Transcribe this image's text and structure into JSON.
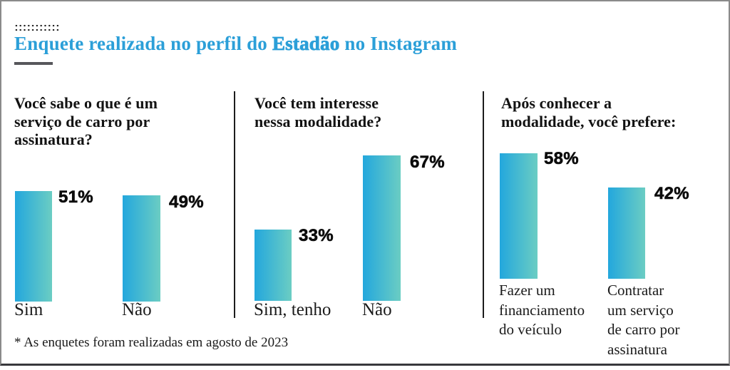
{
  "header": {
    "title_prefix": "Enquete realizada no perfil do ",
    "brand": "Estadão",
    "title_suffix": " no Instagram"
  },
  "icons": {
    "dots_pattern": "two rows of small black dots (::::::::::)"
  },
  "colors": {
    "title_blue": "#2b9fd8",
    "bar_gradient_start": "#23a7dd",
    "bar_gradient_end": "#6bcdc3",
    "text_black": "#121212",
    "divider_black": "#1c1c1c",
    "title_rule_gray": "#57575b",
    "frame_gray": "#8a8a8a",
    "bottom_rule_dark": "#38383c"
  },
  "panels": [
    {
      "question": "Você sabe o que é um\nserviço de carro por\nassinatura?",
      "bars": [
        {
          "label": "Sim",
          "value_label": "51%"
        },
        {
          "label": "Não",
          "value_label": "49%"
        }
      ]
    },
    {
      "question": "Você tem interesse\nnessa modalidade?",
      "bars": [
        {
          "label": "Sim, tenho",
          "value_label": "33%"
        },
        {
          "label": "Não",
          "value_label": "67%"
        }
      ]
    },
    {
      "question": "Após conhecer a\nmodalidade, você prefere:",
      "bars": [
        {
          "label": "Fazer um\nfinanciamento\ndo veículo",
          "value_label": "58%"
        },
        {
          "label": "Contratar\num serviço\nde carro por\nassinatura",
          "value_label": "42%"
        }
      ]
    }
  ],
  "footnote": "* As enquetes foram realizadas em agosto de 2023",
  "chart_data": [
    {
      "type": "bar",
      "title": "Você sabe o que é um serviço de carro por assinatura?",
      "categories": [
        "Sim",
        "Não"
      ],
      "values": [
        51,
        49
      ],
      "unit": "%",
      "ylim": [
        0,
        100
      ],
      "grid": false,
      "value_labels_position": "right-of-bar-top"
    },
    {
      "type": "bar",
      "title": "Você tem interesse nessa modalidade?",
      "categories": [
        "Sim, tenho",
        "Não"
      ],
      "values": [
        33,
        67
      ],
      "unit": "%",
      "ylim": [
        0,
        100
      ],
      "grid": false,
      "value_labels_position": "right-of-bar-top"
    },
    {
      "type": "bar",
      "title": "Após conhecer a modalidade, você prefere:",
      "categories": [
        "Fazer um financiamento do veículo",
        "Contratar um serviço de carro por assinatura"
      ],
      "values": [
        58,
        42
      ],
      "unit": "%",
      "ylim": [
        0,
        100
      ],
      "grid": false,
      "value_labels_position": "right-of-bar-top"
    }
  ],
  "source_note": "Enquete realizada no perfil do Estadão no Instagram"
}
